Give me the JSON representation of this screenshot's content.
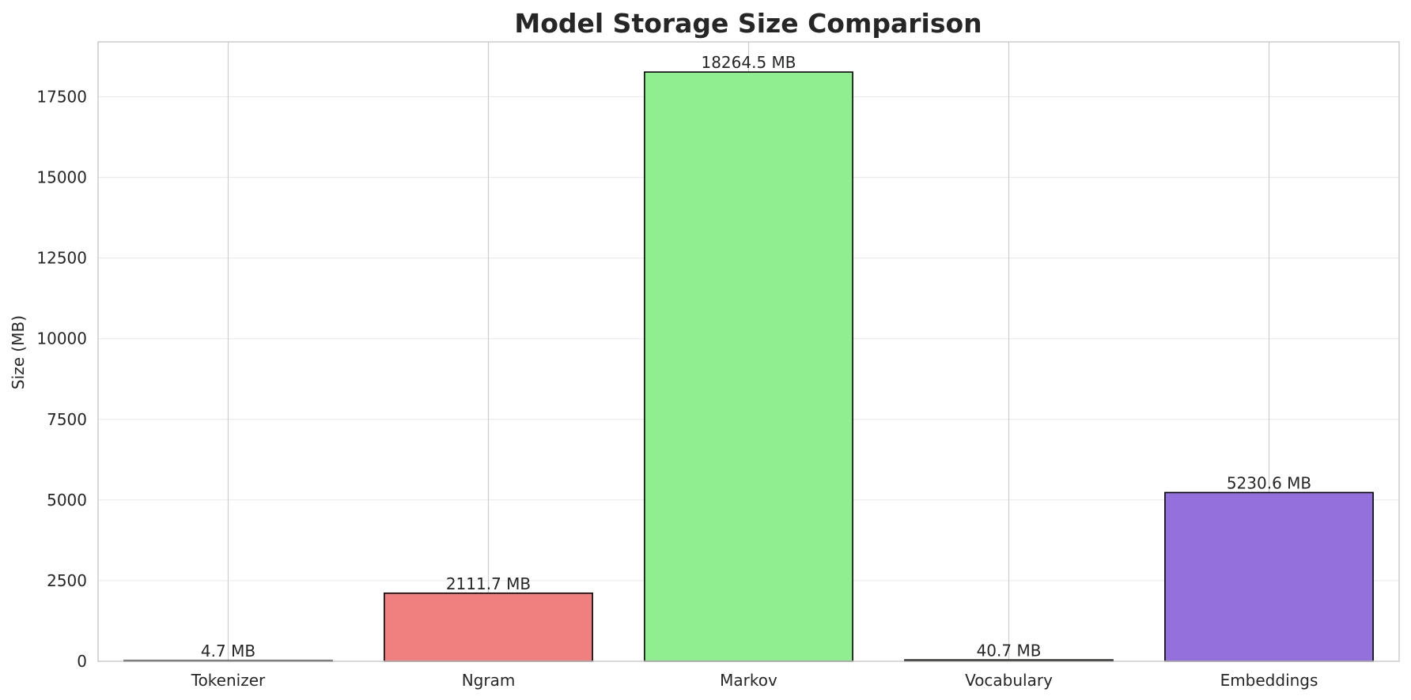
{
  "chart_data": {
    "type": "bar",
    "title": "Model Storage Size Comparison",
    "xlabel": "",
    "ylabel": "Size (MB)",
    "categories": [
      "Tokenizer",
      "Ngram",
      "Markov",
      "Vocabulary",
      "Embeddings"
    ],
    "values": [
      4.7,
      2111.7,
      18264.5,
      40.7,
      5230.6
    ],
    "data_labels": [
      "4.7 MB",
      "2111.7 MB",
      "18264.5 MB",
      "40.7 MB",
      "5230.6 MB"
    ],
    "colors": [
      "#87ceeb",
      "#f08080",
      "#90ee90",
      "#ffd700",
      "#9370db"
    ],
    "ylim": [
      0,
      19200
    ],
    "yticks": [
      0,
      2500,
      5000,
      7500,
      10000,
      12500,
      15000,
      17500
    ],
    "grid": true,
    "legend": "none"
  }
}
